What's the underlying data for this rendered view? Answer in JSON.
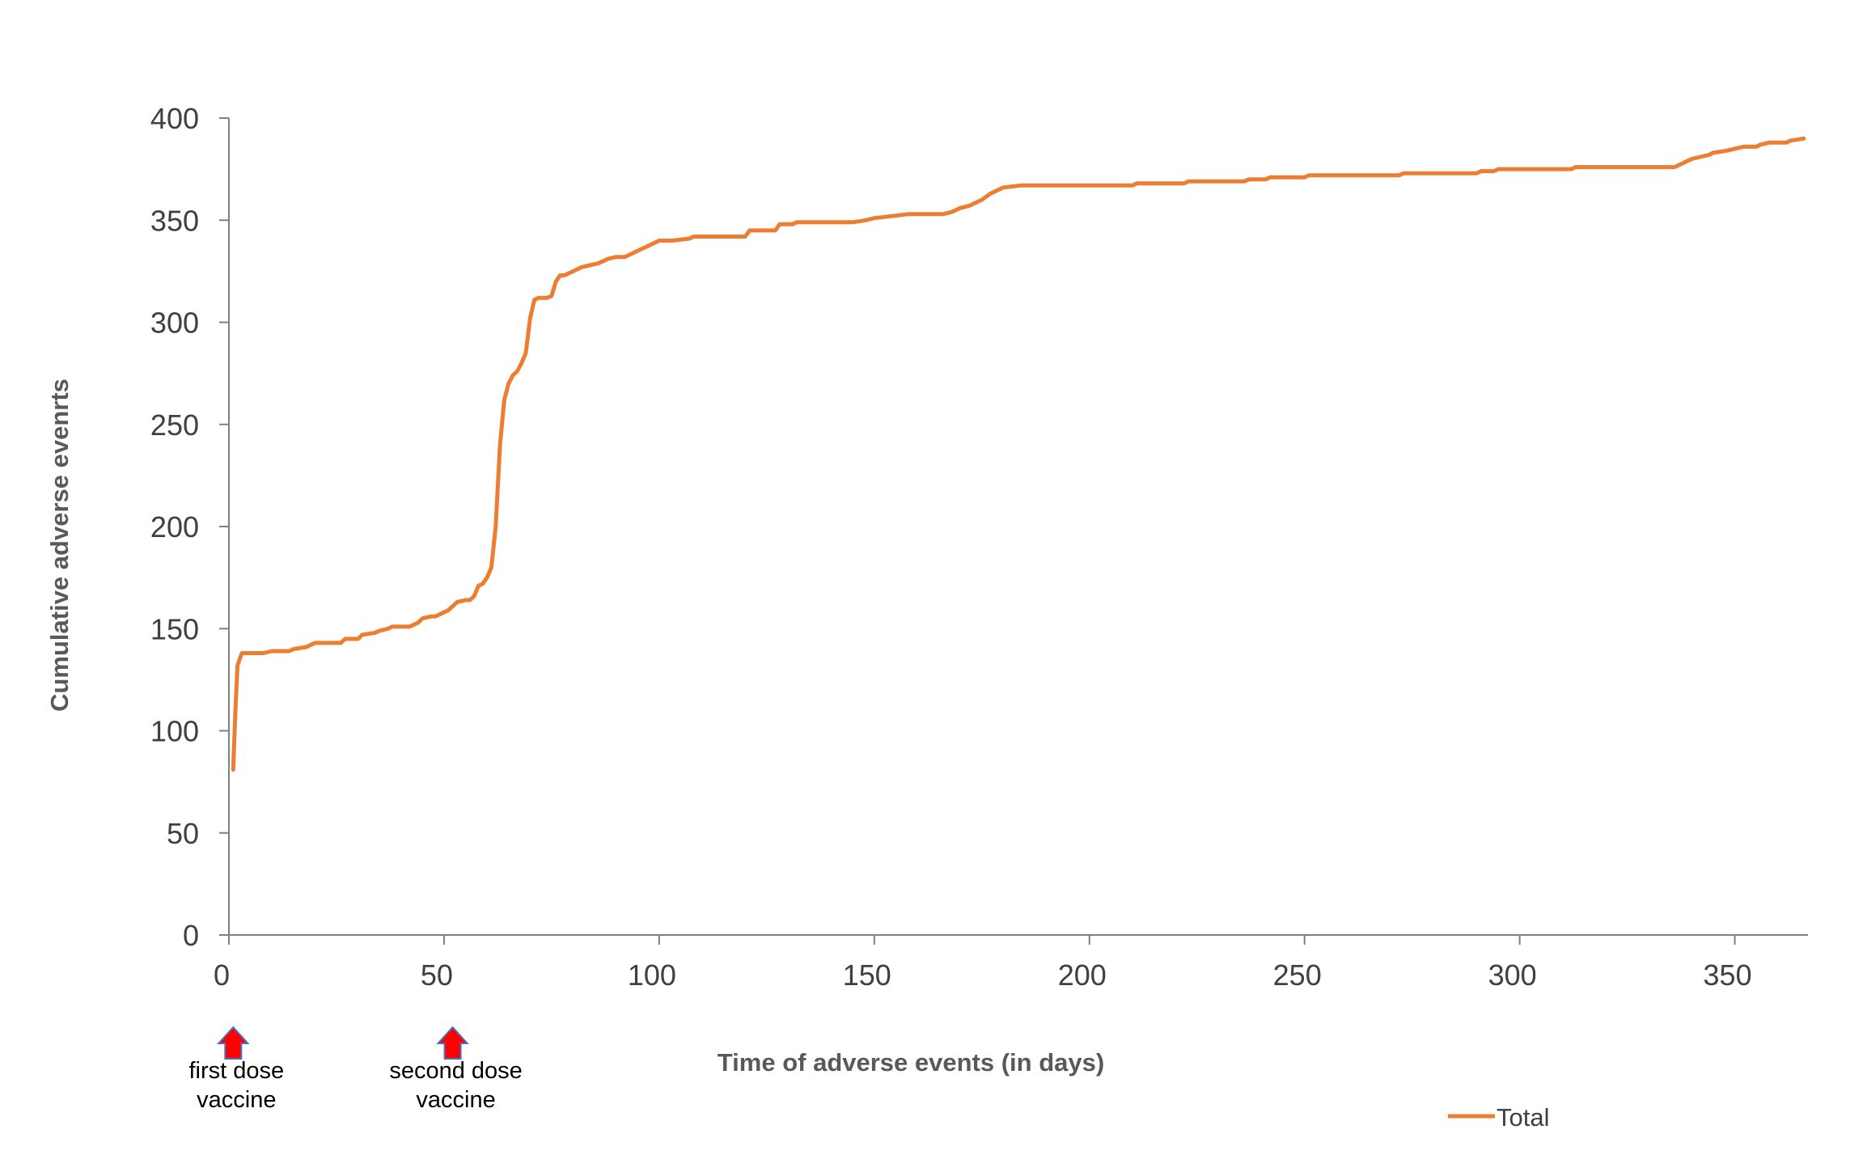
{
  "chart_data": {
    "type": "line",
    "title": "",
    "xlabel": "Time of adverse events (in days)",
    "ylabel": "Cumulative adverse evenrts",
    "xlim": [
      0,
      367
    ],
    "ylim": [
      0,
      400
    ],
    "x_ticks": [
      0,
      50,
      100,
      150,
      200,
      250,
      300,
      350
    ],
    "y_ticks": [
      0,
      50,
      100,
      150,
      200,
      250,
      300,
      350,
      400
    ],
    "grid": false,
    "legend": "bottom-right",
    "colors": {
      "line": "#ED7D31",
      "axis": "#808080",
      "arrow_fill": "#FF0000",
      "arrow_stroke": "#4472C4"
    },
    "series": [
      {
        "name": "Total",
        "x": [
          1,
          1.5,
          2,
          3,
          5,
          8,
          10,
          14,
          15,
          18,
          20,
          26,
          27,
          30,
          31,
          34,
          35,
          37,
          38,
          42,
          43,
          44,
          45,
          47,
          48,
          50,
          51,
          52,
          53,
          55,
          56,
          57,
          58,
          59,
          60,
          61,
          62,
          63,
          64,
          65,
          66,
          67,
          68,
          69,
          70,
          71,
          72,
          73,
          74,
          75,
          76,
          77,
          78,
          79,
          80,
          82,
          84,
          86,
          88,
          90,
          92,
          93,
          95,
          96,
          98,
          100,
          103,
          107,
          108,
          110,
          120,
          121,
          127,
          128,
          131,
          132,
          145,
          148,
          150,
          154,
          158,
          166,
          168,
          170,
          172,
          175,
          177,
          180,
          184,
          210,
          211,
          222,
          223,
          236,
          237,
          241,
          242,
          250,
          251,
          272,
          273,
          290,
          291,
          294,
          295,
          312,
          313,
          336,
          338,
          339,
          340,
          342,
          344,
          345,
          348,
          350,
          352,
          355,
          356,
          358,
          362,
          363,
          366
        ],
        "values": [
          81,
          110,
          132,
          138,
          138,
          138,
          139,
          139,
          140,
          141,
          143,
          143,
          145,
          145,
          147,
          148,
          149,
          150,
          151,
          151,
          152,
          153,
          155,
          156,
          156,
          158,
          159,
          161,
          163,
          164,
          164,
          166,
          171,
          172,
          175,
          180,
          200,
          240,
          262,
          270,
          274,
          276,
          280,
          285,
          302,
          311,
          312,
          312,
          312,
          313,
          320,
          323,
          323,
          324,
          325,
          327,
          328,
          329,
          331,
          332,
          332,
          333,
          335,
          336,
          338,
          340,
          340,
          341,
          342,
          342,
          342,
          345,
          345,
          348,
          348,
          349,
          349,
          350,
          351,
          352,
          353,
          353,
          354,
          356,
          357,
          360,
          363,
          366,
          367,
          367,
          368,
          368,
          369,
          369,
          370,
          370,
          371,
          371,
          372,
          372,
          373,
          373,
          374,
          374,
          375,
          375,
          376,
          376,
          378,
          379,
          380,
          381,
          382,
          383,
          384,
          385,
          386,
          386,
          387,
          388,
          388,
          389,
          390
        ]
      }
    ],
    "annotations": [
      {
        "x": 1,
        "line1": "first dose",
        "line2": "vaccine"
      },
      {
        "x": 52,
        "line1": "second dose",
        "line2": "vaccine"
      }
    ]
  }
}
